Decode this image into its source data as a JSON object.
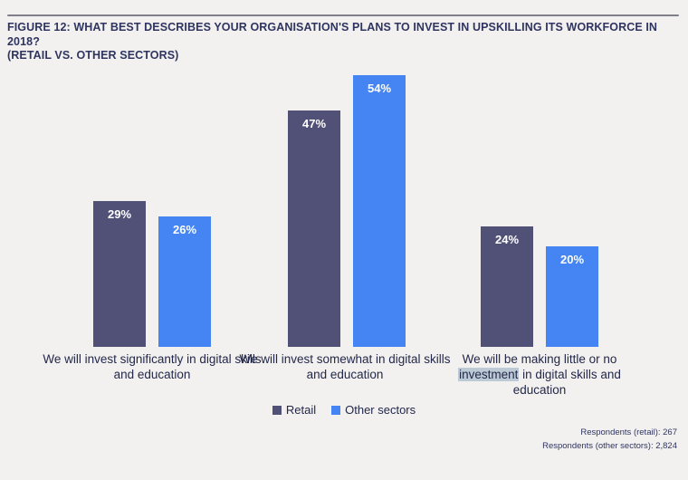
{
  "header": {
    "title_line1": "FIGURE 12: WHAT BEST DESCRIBES YOUR ORGANISATION'S PLANS TO INVEST IN UPSKILLING ITS WORKFORCE IN 2018?",
    "title_line2": "(RETAIL VS. OTHER SECTORS)"
  },
  "chart_data": {
    "type": "bar",
    "title": "Figure 12: What best describes your organisation's plans to invest in upskilling its workforce in 2018? (Retail vs. other sectors)",
    "categories": [
      "We will invest significantly in digital skills and education",
      "We will invest somewhat in digital skills and education",
      "We will be making little or no investment in digital skills and education"
    ],
    "series": [
      {
        "name": "Retail",
        "values": [
          29,
          47,
          24
        ],
        "display": [
          "29%",
          "47%",
          "24%"
        ],
        "color": "#515178"
      },
      {
        "name": "Other sectors",
        "values": [
          26,
          54,
          20
        ],
        "display": [
          "26%",
          "54%",
          "20%"
        ],
        "color": "#4484F3"
      }
    ],
    "value_labels_inside_bars": true,
    "value_label_color": "#FFFFFF",
    "xlabel": "",
    "ylabel": "",
    "ylim": [
      0,
      60
    ],
    "grid": false,
    "axes_visible": false,
    "legend_position": "bottom-center"
  },
  "xlabels": {
    "label1": "We will invest significantly in digital skills and education",
    "label2": "We will invest somewhat in digital skills and education",
    "label3_pre": "We will be making little or no ",
    "label3_highlight": "investment",
    "label3_post": " in digital skills and education"
  },
  "footer": {
    "respondents_retail": "Respondents (retail): 267",
    "respondents_other": "Respondents (other sectors): 2,824"
  },
  "colors": {
    "background": "#F2F1EF",
    "retail_bar": "#515178",
    "other_bar": "#4484F3",
    "title_text": "#2F3460",
    "label_text": "#23284A",
    "top_rule": "#7F7F8A",
    "highlight": "#BCCAD6",
    "value_label": "#FFFFFF"
  }
}
